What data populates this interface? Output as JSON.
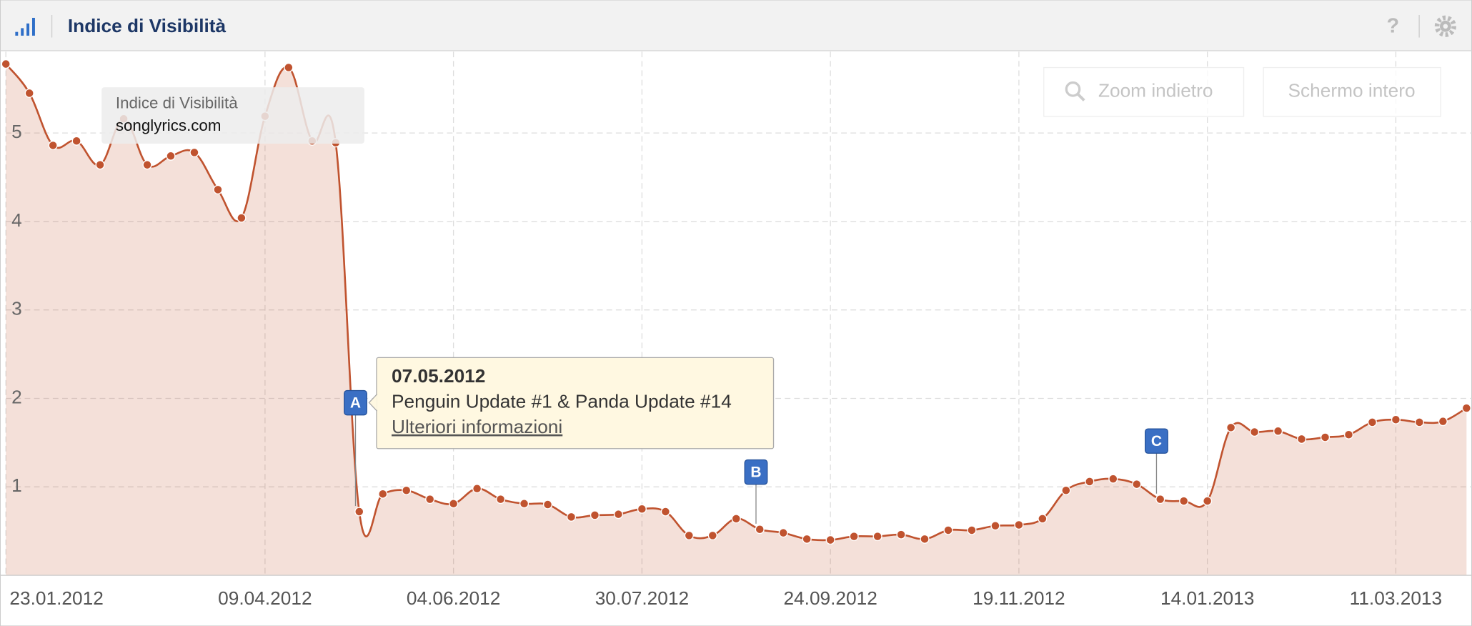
{
  "header": {
    "title": "Indice di Visibilità",
    "help": "?"
  },
  "buttons": {
    "zoom_out": "Zoom indietro",
    "fullscreen": "Schermo intero"
  },
  "chart_data": {
    "type": "line",
    "legend_title": "Indice di Visibilità",
    "x": [
      "23.01.2012",
      "30.01.2012",
      "06.02.2012",
      "13.02.2012",
      "20.02.2012",
      "27.02.2012",
      "05.03.2012",
      "12.03.2012",
      "19.03.2012",
      "26.03.2012",
      "02.04.2012",
      "09.04.2012",
      "16.04.2012",
      "23.04.2012",
      "30.04.2012",
      "07.05.2012",
      "14.05.2012",
      "21.05.2012",
      "28.05.2012",
      "04.06.2012",
      "11.06.2012",
      "18.06.2012",
      "25.06.2012",
      "02.07.2012",
      "09.07.2012",
      "16.07.2012",
      "23.07.2012",
      "30.07.2012",
      "06.08.2012",
      "13.08.2012",
      "20.08.2012",
      "27.08.2012",
      "03.09.2012",
      "10.09.2012",
      "17.09.2012",
      "24.09.2012",
      "01.10.2012",
      "08.10.2012",
      "15.10.2012",
      "22.10.2012",
      "29.10.2012",
      "05.11.2012",
      "12.11.2012",
      "19.11.2012",
      "26.11.2012",
      "03.12.2012",
      "10.12.2012",
      "17.12.2012",
      "24.12.2012",
      "31.12.2012",
      "07.01.2013",
      "14.01.2013",
      "21.01.2013",
      "28.01.2013",
      "04.02.2013",
      "11.02.2013",
      "18.02.2013",
      "25.02.2013",
      "04.03.2013",
      "11.03.2013",
      "18.03.2013",
      "25.03.2013",
      "01.04.2013"
    ],
    "series": [
      {
        "name": "songlyrics.com",
        "color": "#c0532f",
        "values": [
          5.78,
          5.45,
          4.86,
          4.91,
          4.64,
          5.16,
          4.64,
          4.74,
          4.78,
          4.36,
          4.04,
          5.19,
          5.74,
          4.91,
          4.89,
          0.72,
          0.92,
          0.96,
          0.86,
          0.81,
          0.98,
          0.86,
          0.81,
          0.8,
          0.66,
          0.68,
          0.69,
          0.75,
          0.72,
          0.45,
          0.45,
          0.64,
          0.52,
          0.48,
          0.41,
          0.4,
          0.44,
          0.44,
          0.46,
          0.41,
          0.51,
          0.51,
          0.56,
          0.57,
          0.64,
          0.96,
          1.06,
          1.09,
          1.03,
          0.86,
          0.84,
          0.84,
          1.67,
          1.62,
          1.63,
          1.54,
          1.56,
          1.59,
          1.73,
          1.76,
          1.73,
          1.74,
          1.89
        ]
      }
    ],
    "xlim": [
      "23.01.2012",
      "02.04.2013"
    ],
    "xticks": [
      "23.01.2012",
      "09.04.2012",
      "04.06.2012",
      "30.07.2012",
      "24.09.2012",
      "19.11.2012",
      "14.01.2013",
      "11.03.2013"
    ],
    "ylim": [
      0,
      5.92
    ],
    "yticks": [
      1,
      2,
      3,
      4,
      5
    ],
    "grid": true,
    "events": [
      {
        "x": "07.05.2012",
        "label": "A"
      },
      {
        "x": "03.09.2012",
        "label": "B"
      },
      {
        "x": "31.12.2012",
        "label": "C"
      }
    ],
    "tooltip": {
      "date": "07.05.2012",
      "text": "Penguin Update #1 & Panda Update #14",
      "link": "Ulteriori informazioni"
    }
  }
}
